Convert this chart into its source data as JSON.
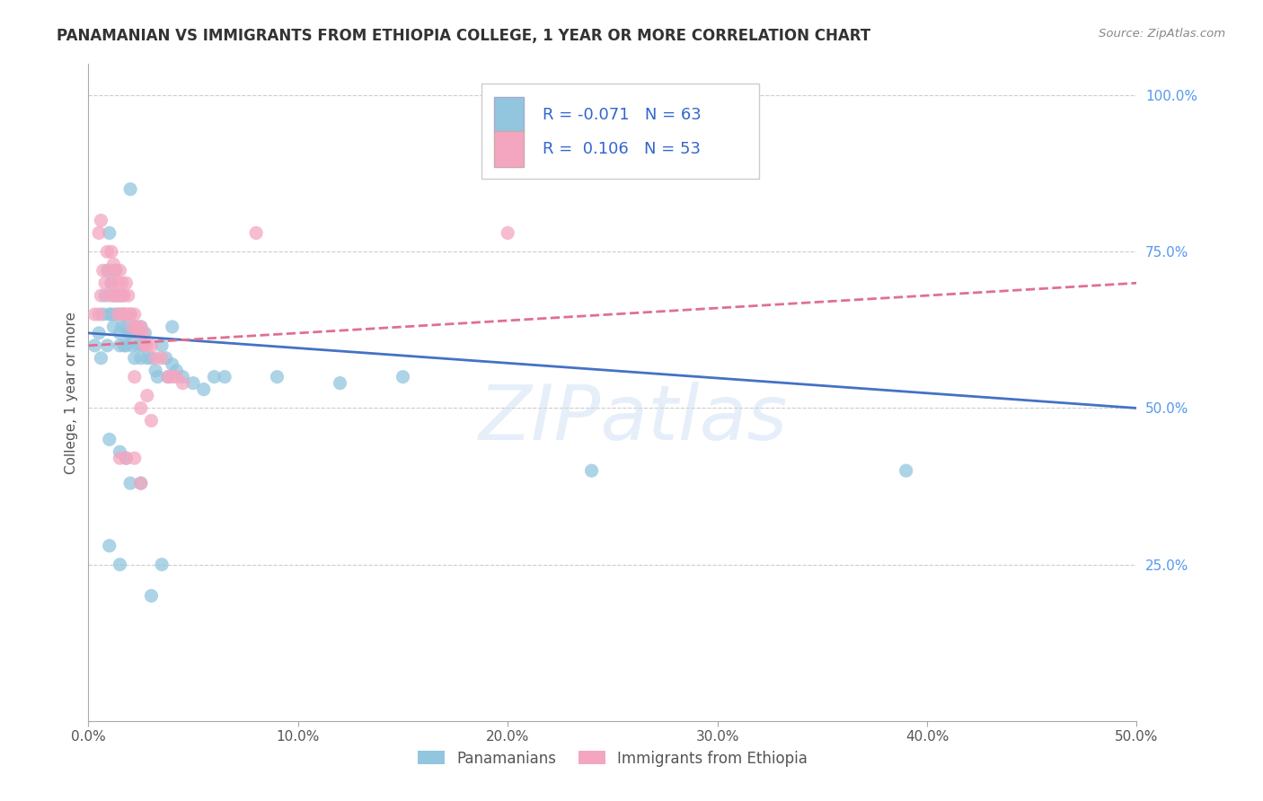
{
  "title": "PANAMANIAN VS IMMIGRANTS FROM ETHIOPIA COLLEGE, 1 YEAR OR MORE CORRELATION CHART",
  "source": "Source: ZipAtlas.com",
  "xlabel_ticks": [
    "0.0%",
    "10.0%",
    "20.0%",
    "30.0%",
    "40.0%",
    "50.0%"
  ],
  "xlabel_values": [
    0.0,
    0.1,
    0.2,
    0.3,
    0.4,
    0.5
  ],
  "ylabel_ticks": [
    "100.0%",
    "75.0%",
    "50.0%",
    "25.0%"
  ],
  "ylabel_values": [
    1.0,
    0.75,
    0.5,
    0.25
  ],
  "xlim": [
    0.0,
    0.5
  ],
  "ylim": [
    0.0,
    1.05
  ],
  "ylabel": "College, 1 year or more",
  "blue_scatter": [
    [
      0.003,
      0.6
    ],
    [
      0.005,
      0.62
    ],
    [
      0.006,
      0.58
    ],
    [
      0.007,
      0.65
    ],
    [
      0.008,
      0.68
    ],
    [
      0.009,
      0.72
    ],
    [
      0.009,
      0.6
    ],
    [
      0.01,
      0.78
    ],
    [
      0.01,
      0.65
    ],
    [
      0.011,
      0.7
    ],
    [
      0.011,
      0.65
    ],
    [
      0.012,
      0.68
    ],
    [
      0.012,
      0.63
    ],
    [
      0.013,
      0.72
    ],
    [
      0.013,
      0.65
    ],
    [
      0.014,
      0.68
    ],
    [
      0.015,
      0.65
    ],
    [
      0.015,
      0.62
    ],
    [
      0.015,
      0.6
    ],
    [
      0.016,
      0.68
    ],
    [
      0.016,
      0.63
    ],
    [
      0.017,
      0.65
    ],
    [
      0.017,
      0.6
    ],
    [
      0.018,
      0.63
    ],
    [
      0.018,
      0.6
    ],
    [
      0.019,
      0.62
    ],
    [
      0.02,
      0.65
    ],
    [
      0.02,
      0.62
    ],
    [
      0.021,
      0.6
    ],
    [
      0.022,
      0.63
    ],
    [
      0.022,
      0.58
    ],
    [
      0.023,
      0.62
    ],
    [
      0.024,
      0.6
    ],
    [
      0.025,
      0.63
    ],
    [
      0.025,
      0.58
    ],
    [
      0.026,
      0.6
    ],
    [
      0.027,
      0.62
    ],
    [
      0.028,
      0.58
    ],
    [
      0.03,
      0.58
    ],
    [
      0.032,
      0.56
    ],
    [
      0.033,
      0.55
    ],
    [
      0.035,
      0.6
    ],
    [
      0.037,
      0.58
    ],
    [
      0.038,
      0.55
    ],
    [
      0.04,
      0.57
    ],
    [
      0.042,
      0.56
    ],
    [
      0.045,
      0.55
    ],
    [
      0.05,
      0.54
    ],
    [
      0.055,
      0.53
    ],
    [
      0.06,
      0.55
    ],
    [
      0.065,
      0.55
    ],
    [
      0.09,
      0.55
    ],
    [
      0.12,
      0.54
    ],
    [
      0.15,
      0.55
    ],
    [
      0.02,
      0.85
    ],
    [
      0.04,
      0.63
    ],
    [
      0.01,
      0.45
    ],
    [
      0.015,
      0.43
    ],
    [
      0.018,
      0.42
    ],
    [
      0.02,
      0.38
    ],
    [
      0.025,
      0.38
    ],
    [
      0.01,
      0.28
    ],
    [
      0.015,
      0.25
    ],
    [
      0.03,
      0.2
    ],
    [
      0.035,
      0.25
    ],
    [
      0.24,
      0.4
    ],
    [
      0.39,
      0.4
    ]
  ],
  "pink_scatter": [
    [
      0.003,
      0.65
    ],
    [
      0.005,
      0.65
    ],
    [
      0.006,
      0.68
    ],
    [
      0.007,
      0.72
    ],
    [
      0.008,
      0.7
    ],
    [
      0.009,
      0.75
    ],
    [
      0.01,
      0.72
    ],
    [
      0.01,
      0.68
    ],
    [
      0.011,
      0.75
    ],
    [
      0.011,
      0.7
    ],
    [
      0.012,
      0.73
    ],
    [
      0.012,
      0.68
    ],
    [
      0.013,
      0.72
    ],
    [
      0.013,
      0.68
    ],
    [
      0.014,
      0.7
    ],
    [
      0.014,
      0.65
    ],
    [
      0.015,
      0.72
    ],
    [
      0.015,
      0.68
    ],
    [
      0.016,
      0.7
    ],
    [
      0.016,
      0.65
    ],
    [
      0.017,
      0.68
    ],
    [
      0.017,
      0.65
    ],
    [
      0.018,
      0.7
    ],
    [
      0.018,
      0.65
    ],
    [
      0.019,
      0.68
    ],
    [
      0.02,
      0.65
    ],
    [
      0.021,
      0.63
    ],
    [
      0.022,
      0.65
    ],
    [
      0.023,
      0.63
    ],
    [
      0.024,
      0.62
    ],
    [
      0.025,
      0.63
    ],
    [
      0.026,
      0.62
    ],
    [
      0.027,
      0.6
    ],
    [
      0.028,
      0.6
    ],
    [
      0.03,
      0.6
    ],
    [
      0.032,
      0.58
    ],
    [
      0.035,
      0.58
    ],
    [
      0.038,
      0.55
    ],
    [
      0.04,
      0.55
    ],
    [
      0.042,
      0.55
    ],
    [
      0.045,
      0.54
    ],
    [
      0.005,
      0.78
    ],
    [
      0.006,
      0.8
    ],
    [
      0.022,
      0.55
    ],
    [
      0.025,
      0.5
    ],
    [
      0.028,
      0.52
    ],
    [
      0.03,
      0.48
    ],
    [
      0.015,
      0.42
    ],
    [
      0.018,
      0.42
    ],
    [
      0.022,
      0.42
    ],
    [
      0.025,
      0.38
    ],
    [
      0.08,
      0.78
    ],
    [
      0.2,
      0.78
    ]
  ],
  "blue_line": [
    [
      0.0,
      0.62
    ],
    [
      0.5,
      0.5
    ]
  ],
  "pink_line": [
    [
      0.0,
      0.6
    ],
    [
      0.5,
      0.7
    ]
  ],
  "blue_scatter_color": "#92c5de",
  "blue_scatter_edge": "#92c5de",
  "pink_scatter_color": "#f4a6c0",
  "pink_scatter_edge": "#f4a6c0",
  "blue_line_color": "#4472c4",
  "pink_line_color": "#e07090",
  "watermark": "ZIPatlas",
  "background_color": "#ffffff",
  "grid_color": "#cccccc",
  "legend_blue_color": "#92c5de",
  "legend_pink_color": "#f4a6c0"
}
